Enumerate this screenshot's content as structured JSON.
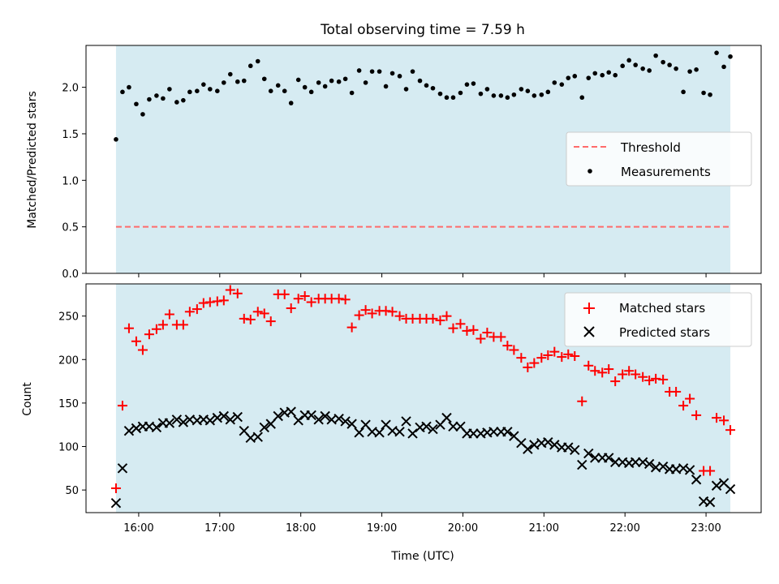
{
  "title": "Total observing time = 7.59 h",
  "chart_data": [
    {
      "type": "scatter",
      "panel": "top",
      "ylabel": "Matched/Predicted stars",
      "ylim": [
        0,
        2.45
      ],
      "yticks": [
        0.0,
        0.5,
        1.0,
        1.5,
        2.0
      ],
      "ytick_labels": [
        "0.0",
        "0.5",
        "1.0",
        "1.5",
        "2.0"
      ],
      "xlim": [
        15.35,
        23.68
      ],
      "shaded_span": [
        15.72,
        23.3
      ],
      "shade_color": "#add8e6",
      "threshold": {
        "name": "Threshold",
        "value": 0.5,
        "color": "#ff6b6b",
        "style": "dashed"
      },
      "legend_position": "center-right",
      "series": [
        {
          "name": "Measurements",
          "marker": "dot",
          "color": "#000000",
          "x": [
            15.72,
            15.8,
            15.88,
            15.97,
            16.05,
            16.13,
            16.22,
            16.3,
            16.38,
            16.47,
            16.55,
            16.63,
            16.72,
            16.8,
            16.88,
            16.97,
            17.05,
            17.13,
            17.22,
            17.3,
            17.38,
            17.47,
            17.55,
            17.63,
            17.72,
            17.8,
            17.88,
            17.97,
            18.05,
            18.13,
            18.22,
            18.3,
            18.38,
            18.47,
            18.55,
            18.63,
            18.72,
            18.8,
            18.88,
            18.97,
            19.05,
            19.13,
            19.22,
            19.3,
            19.38,
            19.47,
            19.55,
            19.63,
            19.72,
            19.8,
            19.88,
            19.97,
            20.05,
            20.13,
            20.22,
            20.3,
            20.38,
            20.47,
            20.55,
            20.63,
            20.72,
            20.8,
            20.88,
            20.97,
            21.05,
            21.13,
            21.22,
            21.3,
            21.38,
            21.47,
            21.55,
            21.63,
            21.72,
            21.8,
            21.88,
            21.97,
            22.05,
            22.13,
            22.22,
            22.3,
            22.38,
            22.47,
            22.55,
            22.63,
            22.72,
            22.8,
            22.88,
            22.97,
            23.05,
            23.13,
            23.22,
            23.3
          ],
          "y": [
            1.44,
            1.95,
            2.0,
            1.82,
            1.71,
            1.87,
            1.91,
            1.88,
            1.98,
            1.84,
            1.86,
            1.95,
            1.96,
            2.03,
            1.98,
            1.96,
            2.05,
            2.14,
            2.06,
            2.07,
            2.23,
            2.28,
            2.09,
            1.96,
            2.02,
            1.96,
            1.83,
            2.08,
            2.0,
            1.95,
            2.05,
            2.01,
            2.07,
            2.06,
            2.09,
            1.94,
            2.18,
            2.05,
            2.17,
            2.17,
            2.01,
            2.15,
            2.12,
            1.98,
            2.17,
            2.07,
            2.02,
            1.99,
            1.93,
            1.89,
            1.89,
            1.94,
            2.03,
            2.04,
            1.93,
            1.98,
            1.91,
            1.91,
            1.89,
            1.92,
            1.98,
            1.96,
            1.91,
            1.92,
            1.95,
            2.05,
            2.03,
            2.1,
            2.12,
            1.89,
            2.1,
            2.15,
            2.13,
            2.16,
            2.13,
            2.23,
            2.29,
            2.24,
            2.2,
            2.18,
            2.34,
            2.27,
            2.24,
            2.2,
            1.95,
            2.17,
            2.19,
            1.94,
            1.92,
            2.37,
            2.22,
            2.33
          ]
        }
      ]
    },
    {
      "type": "scatter",
      "panel": "bottom",
      "xlabel": "Time (UTC)",
      "ylabel": "Count",
      "ylim": [
        24,
        287
      ],
      "yticks": [
        50,
        100,
        150,
        200,
        250
      ],
      "ytick_labels": [
        "50",
        "100",
        "150",
        "200",
        "250"
      ],
      "xlim": [
        15.35,
        23.68
      ],
      "xticks": [
        16,
        17,
        18,
        19,
        20,
        21,
        22,
        23
      ],
      "xtick_labels": [
        "16:00",
        "17:00",
        "18:00",
        "19:00",
        "20:00",
        "21:00",
        "22:00",
        "23:00"
      ],
      "shaded_span": [
        15.72,
        23.3
      ],
      "shade_color": "#add8e6",
      "legend_position": "top-right",
      "x": [
        15.72,
        15.8,
        15.88,
        15.97,
        16.05,
        16.13,
        16.22,
        16.3,
        16.38,
        16.47,
        16.55,
        16.63,
        16.72,
        16.8,
        16.88,
        16.97,
        17.05,
        17.13,
        17.22,
        17.3,
        17.38,
        17.47,
        17.55,
        17.63,
        17.72,
        17.8,
        17.88,
        17.97,
        18.05,
        18.13,
        18.22,
        18.3,
        18.38,
        18.47,
        18.55,
        18.63,
        18.72,
        18.8,
        18.88,
        18.97,
        19.05,
        19.13,
        19.22,
        19.3,
        19.38,
        19.47,
        19.55,
        19.63,
        19.72,
        19.8,
        19.88,
        19.97,
        20.05,
        20.13,
        20.22,
        20.3,
        20.38,
        20.47,
        20.55,
        20.63,
        20.72,
        20.8,
        20.88,
        20.97,
        21.05,
        21.13,
        21.22,
        21.3,
        21.38,
        21.47,
        21.55,
        21.63,
        21.72,
        21.8,
        21.88,
        21.97,
        22.05,
        22.13,
        22.22,
        22.3,
        22.38,
        22.47,
        22.55,
        22.63,
        22.72,
        22.8,
        22.88,
        22.97,
        23.05,
        23.13,
        23.22,
        23.3
      ],
      "series": [
        {
          "name": "Matched stars",
          "marker": "plus",
          "color": "#ff0000",
          "values": [
            52,
            147,
            236,
            221,
            211,
            229,
            235,
            240,
            252,
            240,
            240,
            255,
            258,
            265,
            266,
            267,
            268,
            280,
            276,
            247,
            246,
            255,
            253,
            244,
            275,
            275,
            259,
            270,
            273,
            266,
            270,
            270,
            270,
            270,
            269,
            237,
            251,
            257,
            253,
            256,
            256,
            255,
            250,
            247,
            247,
            247,
            247,
            247,
            245,
            250,
            236,
            241,
            233,
            234,
            224,
            231,
            226,
            226,
            216,
            211,
            202,
            191,
            196,
            202,
            205,
            209,
            203,
            206,
            204,
            152,
            193,
            187,
            185,
            189,
            175,
            183,
            187,
            183,
            180,
            176,
            178,
            177,
            163,
            163,
            147,
            155,
            136,
            72,
            72,
            133,
            130,
            119
          ]
        },
        {
          "name": "Predicted stars",
          "marker": "x",
          "color": "#000000",
          "values": [
            35,
            75,
            118,
            121,
            123,
            123,
            122,
            127,
            127,
            131,
            128,
            131,
            130,
            131,
            130,
            133,
            135,
            131,
            134,
            118,
            110,
            111,
            122,
            126,
            135,
            139,
            140,
            130,
            136,
            136,
            131,
            135,
            131,
            132,
            129,
            126,
            116,
            125,
            117,
            116,
            125,
            118,
            117,
            129,
            115,
            122,
            123,
            120,
            125,
            133,
            123,
            123,
            115,
            115,
            115,
            116,
            117,
            117,
            117,
            112,
            104,
            97,
            102,
            104,
            105,
            102,
            99,
            99,
            96,
            79,
            92,
            87,
            87,
            87,
            82,
            82,
            81,
            82,
            82,
            80,
            76,
            77,
            74,
            74,
            75,
            73,
            62,
            37,
            36,
            55,
            58,
            51
          ]
        }
      ]
    }
  ]
}
